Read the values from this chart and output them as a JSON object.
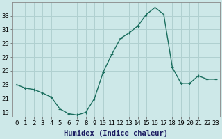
{
  "x": [
    0,
    1,
    2,
    3,
    4,
    5,
    6,
    7,
    8,
    9,
    10,
    11,
    12,
    13,
    14,
    15,
    16,
    17,
    18,
    19,
    20,
    21,
    22,
    23
  ],
  "y": [
    23.0,
    22.5,
    22.3,
    21.8,
    21.2,
    19.5,
    18.8,
    18.6,
    19.0,
    21.0,
    24.8,
    27.4,
    29.7,
    30.5,
    31.5,
    33.2,
    34.2,
    33.2,
    25.5,
    23.2,
    23.2,
    24.3,
    23.8,
    23.8
  ],
  "line_color": "#1a6e5e",
  "marker": "+",
  "marker_size": 3,
  "marker_lw": 0.8,
  "bg_color": "#cde8e8",
  "grid_color": "#b0d0d0",
  "xlabel": "Humidex (Indice chaleur)",
  "ylim": [
    18.3,
    35.0
  ],
  "xlim": [
    -0.5,
    23.5
  ],
  "yticks": [
    19,
    21,
    23,
    25,
    27,
    29,
    31,
    33
  ],
  "xticks": [
    0,
    1,
    2,
    3,
    4,
    5,
    6,
    7,
    8,
    9,
    10,
    11,
    12,
    13,
    14,
    15,
    16,
    17,
    18,
    19,
    20,
    21,
    22,
    23
  ],
  "xlabel_fontsize": 7.5,
  "tick_fontsize": 6.5,
  "line_width": 1.0
}
